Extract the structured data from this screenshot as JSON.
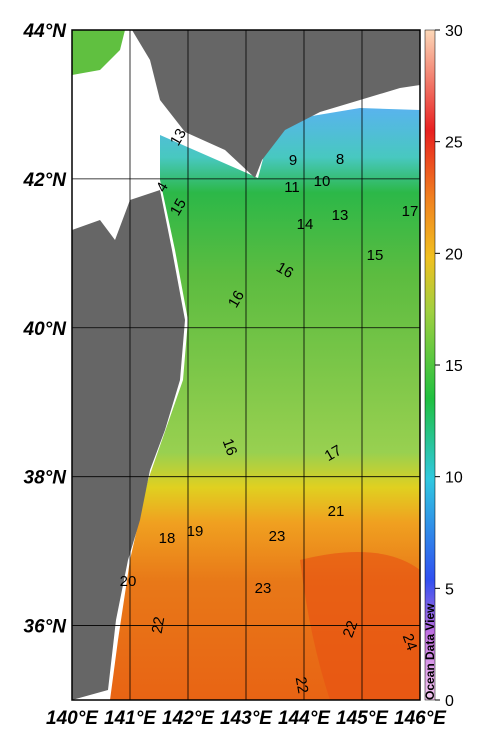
{
  "map": {
    "lon_range": [
      140,
      146
    ],
    "lat_range": [
      35,
      44
    ],
    "lon_ticks": [
      {
        "value": 140,
        "label": "140°E"
      },
      {
        "value": 141,
        "label": "141°E"
      },
      {
        "value": 142,
        "label": "142°E"
      },
      {
        "value": 143,
        "label": "143°E"
      },
      {
        "value": 144,
        "label": "144°E"
      },
      {
        "value": 145,
        "label": "145°E"
      },
      {
        "value": 146,
        "label": "146°E"
      }
    ],
    "lat_ticks": [
      {
        "value": 44,
        "label": "44°N"
      },
      {
        "value": 42,
        "label": "42°N"
      },
      {
        "value": 40,
        "label": "40°N"
      },
      {
        "value": 38,
        "label": "38°N"
      },
      {
        "value": 36,
        "label": "36°N"
      }
    ],
    "contour_labels": [
      13,
      4,
      15,
      9,
      8,
      10,
      11,
      13,
      17,
      14,
      15,
      16,
      16,
      16,
      17,
      21,
      18,
      19,
      23,
      20,
      23,
      22,
      22,
      22,
      24
    ],
    "colorbar": {
      "range": [
        0,
        30
      ],
      "ticks": [
        0,
        5,
        10,
        15,
        20,
        25,
        30
      ]
    },
    "watermark": "Ocean Data View"
  }
}
